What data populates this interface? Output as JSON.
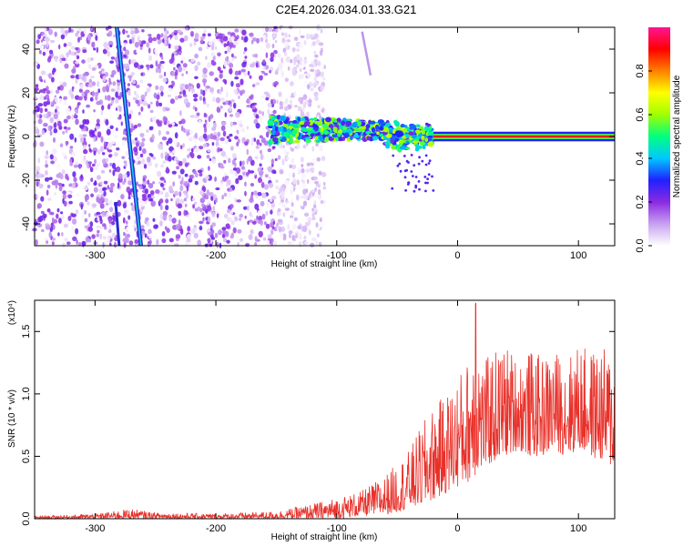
{
  "title": "C2E4.2026.034.01.33.G21",
  "colors": {
    "snr_line": "#e8312a",
    "trace_cyan": "#1fc8e8",
    "trace_blue": "#2a2ad0"
  },
  "chart_data": [
    {
      "type": "heatmap",
      "title": "C2E4.2026.034.01.33.G21",
      "xlabel": "Height of straight line (km)",
      "ylabel": "Frequency (Hz)",
      "xlim": [
        -350,
        130
      ],
      "ylim": [
        -50,
        50
      ],
      "xticks": [
        -300,
        -200,
        -100,
        0,
        100
      ],
      "xtick_labels": [
        "-300",
        "-200",
        "-100",
        "0",
        "100"
      ],
      "yticks": [
        -40,
        -20,
        0,
        20,
        40
      ],
      "ytick_labels": [
        "-40",
        "-20",
        "0",
        "20",
        "40"
      ],
      "colorbar": {
        "label": "Normalized spectral amplitude",
        "range": [
          0,
          1
        ],
        "ticks": [
          0,
          0.2,
          0.4,
          0.6,
          0.8
        ],
        "tick_labels": [
          "0.0",
          "0.2",
          "0.4",
          "0.6",
          "0.8"
        ],
        "colormap": [
          "#ffffff",
          "#c8a0f0",
          "#8a2be2",
          "#2020ff",
          "#00c8ff",
          "#00ff80",
          "#a0ff00",
          "#ffff00",
          "#ff8000",
          "#ff0000",
          "#ff1493"
        ]
      },
      "features": [
        {
          "name": "noise-region",
          "x_range": [
            -350,
            -130
          ],
          "y_range": [
            -50,
            50
          ],
          "amplitude": 0.15
        },
        {
          "name": "sweep-line",
          "x_start": -282,
          "x_end": -262,
          "y_start": 50,
          "y_end": -50,
          "amplitude": 0.4
        },
        {
          "name": "sweep-line-faint",
          "x_start": -283,
          "x_end": -280,
          "y_start": -30,
          "y_end": -50,
          "amplitude": 0.3
        },
        {
          "name": "faint-diagonal",
          "x_start": -79,
          "x_end": -72,
          "y_start": 48,
          "y_end": 28,
          "amplitude": 0.12
        },
        {
          "name": "central-cluster",
          "x_range": [
            -155,
            -20
          ],
          "y_center": 3,
          "y_spread": 6,
          "amplitude": 0.5
        },
        {
          "name": "narrow-band",
          "x_range": [
            -20,
            130
          ],
          "y_center": 0,
          "amplitude": 0.9
        }
      ]
    },
    {
      "type": "line",
      "xlabel": "Height of straight line (km)",
      "ylabel": "SNR (10 * v/v)",
      "scale_label": "(x10⁴)",
      "xlim": [
        -350,
        130
      ],
      "ylim": [
        0,
        1.75
      ],
      "xticks": [
        -300,
        -200,
        -100,
        0,
        100
      ],
      "xtick_labels": [
        "-300",
        "-200",
        "-100",
        "0",
        "100"
      ],
      "yticks": [
        0,
        0.5,
        1.0,
        1.5
      ],
      "ytick_labels": [
        "0.0",
        "0.5",
        "1.0",
        "1.5"
      ],
      "series": [
        {
          "name": "SNR",
          "color": "#e8312a",
          "envelope_x": [
            -350,
            -300,
            -270,
            -250,
            -200,
            -150,
            -120,
            -100,
            -80,
            -60,
            -50,
            -40,
            -30,
            -20,
            -10,
            0,
            10,
            15,
            20,
            30,
            40,
            50,
            60,
            70,
            80,
            90,
            100,
            110,
            120,
            130
          ],
          "envelope_max": [
            0.02,
            0.04,
            0.08,
            0.05,
            0.04,
            0.06,
            0.12,
            0.17,
            0.22,
            0.35,
            0.45,
            0.55,
            0.75,
            0.9,
            1.0,
            1.15,
            1.3,
            1.74,
            1.25,
            1.35,
            1.4,
            1.3,
            1.35,
            1.3,
            1.35,
            1.3,
            1.4,
            1.35,
            1.38,
            1.3
          ],
          "envelope_min": [
            0.0,
            0.0,
            0.0,
            0.0,
            0.0,
            0.0,
            0.0,
            0.0,
            0.02,
            0.03,
            0.05,
            0.08,
            0.1,
            0.15,
            0.2,
            0.25,
            0.3,
            0.35,
            0.4,
            0.45,
            0.5,
            0.55,
            0.5,
            0.5,
            0.55,
            0.5,
            0.55,
            0.5,
            0.45,
            0.4
          ]
        }
      ]
    }
  ]
}
